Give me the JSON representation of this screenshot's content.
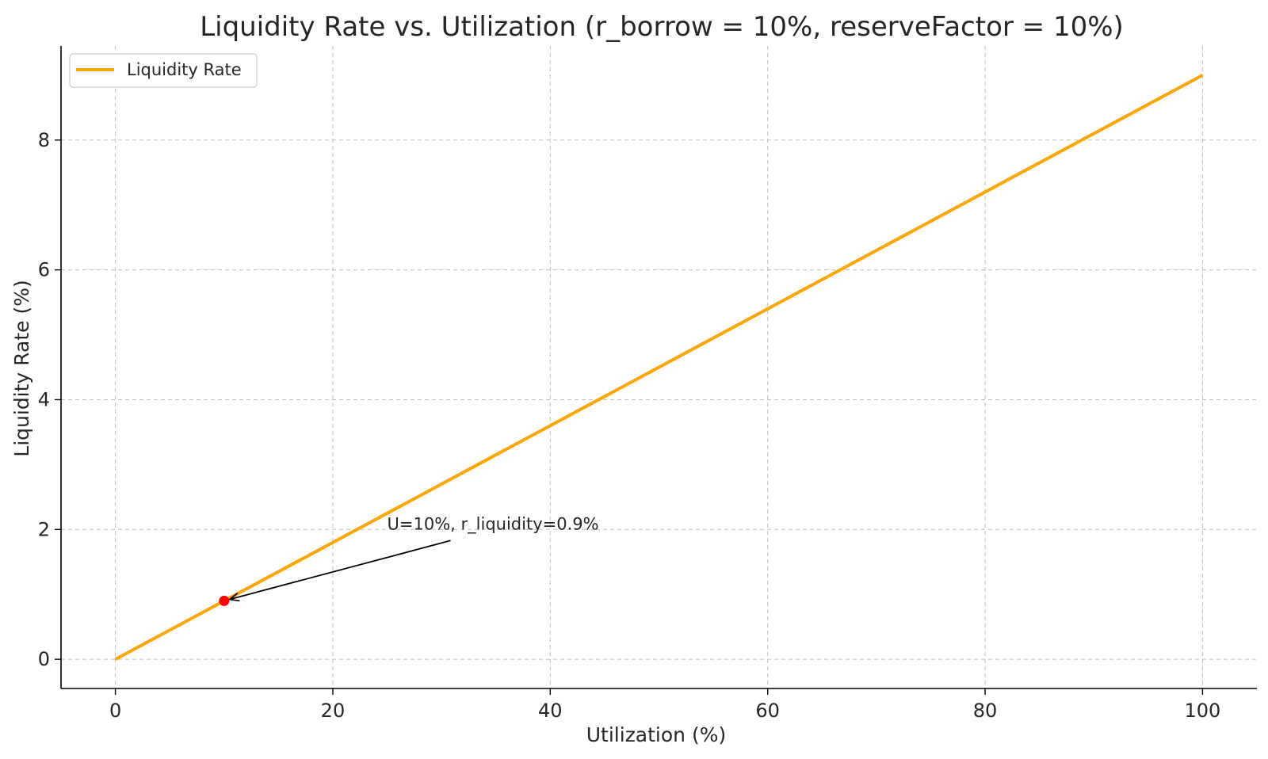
{
  "chart_data": {
    "type": "line",
    "title": "Liquidity Rate vs. Utilization (r_borrow = 10%, reserveFactor = 10%)",
    "xlabel": "Utilization (%)",
    "ylabel": "Liquidity Rate (%)",
    "xlim": [
      -5,
      105
    ],
    "ylim": [
      -0.45,
      9.45
    ],
    "xticks": [
      0,
      20,
      40,
      60,
      80,
      100
    ],
    "yticks": [
      0,
      2,
      4,
      6,
      8
    ],
    "xtick_labels": [
      "0",
      "20",
      "40",
      "60",
      "80",
      "100"
    ],
    "ytick_labels": [
      "0",
      "2",
      "4",
      "6",
      "8"
    ],
    "grid": true,
    "legend_position": "upper-left",
    "series": [
      {
        "name": "Liquidity Rate",
        "color": "#FFA500",
        "x": [
          0,
          100
        ],
        "y": [
          0,
          9
        ]
      }
    ],
    "highlight_point": {
      "x": 10,
      "y": 0.9,
      "color": "#FF0000"
    },
    "annotation": {
      "text": "U=10%, r_liquidity=0.9%",
      "text_x": 25,
      "text_y": 2.0,
      "target_x": 10,
      "target_y": 0.9
    }
  }
}
